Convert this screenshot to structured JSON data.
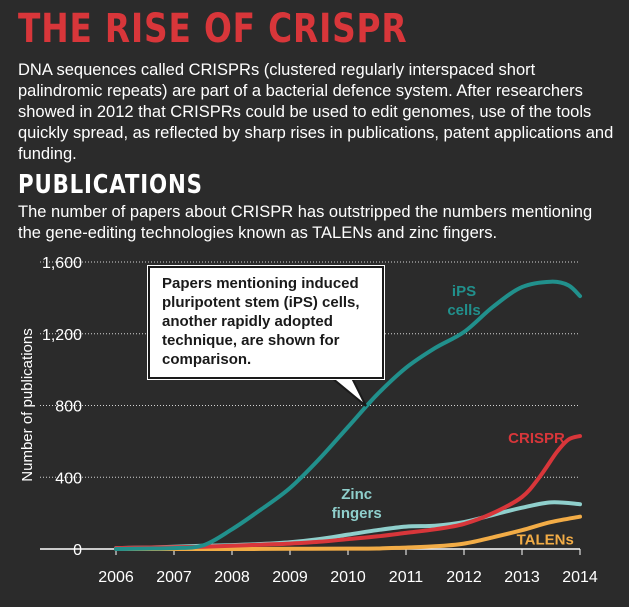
{
  "header": {
    "title": "THE RISE OF CRISPR",
    "intro": "DNA sequences called CRISPRs (clustered regularly interspaced short palindromic repeats) are part of a bacterial defence system. After researchers showed in 2012 that CRISPRs could be used to edit genomes, use of the tools quickly spread, as reflected by sharp rises in publications, patent applications and funding."
  },
  "section": {
    "title": "PUBLICATIONS",
    "subtitle": "The number of papers about CRISPR has outstripped the numbers mentioning the gene-editing technologies known as TALENs and zinc fingers."
  },
  "callout": {
    "text": "Papers mentioning induced pluripotent stem (iPS) cells, another rapidly adopted technique, are shown for comparison."
  },
  "colors": {
    "background": "#2b2b2b",
    "title_red": "#d8363a",
    "ips": "#21908c",
    "crispr": "#d8363a",
    "zinc": "#8fcfcc",
    "talens": "#f2ac46"
  },
  "chart_data": {
    "type": "line",
    "title": "",
    "xlabel": "",
    "ylabel": "Number of publications",
    "xlim": [
      2006,
      2014
    ],
    "ylim": [
      0,
      1600
    ],
    "x_ticks": [
      "2006",
      "2007",
      "2008",
      "2009",
      "2010",
      "2011",
      "2012",
      "2013",
      "2014"
    ],
    "y_ticks": [
      0,
      400,
      800,
      1200,
      1600
    ],
    "y_tick_labels": [
      "0",
      "400",
      "800",
      "1,200",
      "1,600"
    ],
    "grid": true,
    "series": [
      {
        "name": "iPS cells",
        "label_lines": [
          "iPS",
          "cells"
        ],
        "color": "#21908c",
        "points": [
          [
            2006,
            0
          ],
          [
            2006.5,
            2
          ],
          [
            2007,
            5
          ],
          [
            2007.5,
            20
          ],
          [
            2008,
            110
          ],
          [
            2008.5,
            220
          ],
          [
            2009,
            340
          ],
          [
            2009.5,
            500
          ],
          [
            2010,
            680
          ],
          [
            2010.5,
            860
          ],
          [
            2011,
            1010
          ],
          [
            2011.5,
            1120
          ],
          [
            2012,
            1210
          ],
          [
            2012.5,
            1350
          ],
          [
            2013,
            1460
          ],
          [
            2013.5,
            1490
          ],
          [
            2013.8,
            1470
          ],
          [
            2014,
            1410
          ]
        ]
      },
      {
        "name": "CRISPR",
        "label_lines": [
          "CRISPR"
        ],
        "color": "#d8363a",
        "points": [
          [
            2006,
            5
          ],
          [
            2006.5,
            8
          ],
          [
            2007,
            10
          ],
          [
            2007.5,
            13
          ],
          [
            2008,
            18
          ],
          [
            2008.5,
            24
          ],
          [
            2009,
            30
          ],
          [
            2009.5,
            40
          ],
          [
            2010,
            55
          ],
          [
            2010.5,
            70
          ],
          [
            2011,
            90
          ],
          [
            2011.5,
            110
          ],
          [
            2012,
            140
          ],
          [
            2012.5,
            200
          ],
          [
            2013,
            290
          ],
          [
            2013.3,
            400
          ],
          [
            2013.6,
            540
          ],
          [
            2013.8,
            610
          ],
          [
            2014,
            630
          ]
        ]
      },
      {
        "name": "Zinc fingers",
        "label_lines": [
          "Zinc",
          "fingers"
        ],
        "color": "#8fcfcc",
        "points": [
          [
            2006,
            5
          ],
          [
            2006.5,
            8
          ],
          [
            2007,
            12
          ],
          [
            2007.5,
            18
          ],
          [
            2008,
            22
          ],
          [
            2008.5,
            28
          ],
          [
            2009,
            38
          ],
          [
            2009.5,
            55
          ],
          [
            2010,
            80
          ],
          [
            2010.5,
            105
          ],
          [
            2011,
            125
          ],
          [
            2011.5,
            130
          ],
          [
            2012,
            150
          ],
          [
            2012.5,
            190
          ],
          [
            2013,
            230
          ],
          [
            2013.5,
            260
          ],
          [
            2014,
            250
          ]
        ]
      },
      {
        "name": "TALENs",
        "label_lines": [
          "TALENs"
        ],
        "color": "#f2ac46",
        "points": [
          [
            2006,
            0
          ],
          [
            2007,
            0
          ],
          [
            2008,
            0
          ],
          [
            2009,
            1
          ],
          [
            2010,
            2
          ],
          [
            2010.5,
            3
          ],
          [
            2011,
            8
          ],
          [
            2011.5,
            15
          ],
          [
            2012,
            30
          ],
          [
            2012.5,
            65
          ],
          [
            2013,
            105
          ],
          [
            2013.5,
            150
          ],
          [
            2014,
            180
          ]
        ]
      }
    ]
  }
}
